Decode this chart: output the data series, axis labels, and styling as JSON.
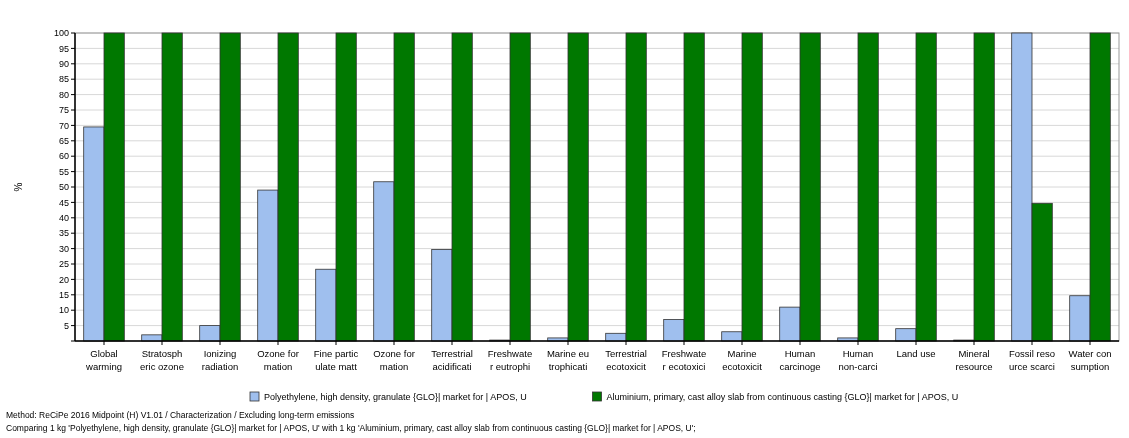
{
  "chart_data": {
    "type": "bar",
    "ylabel": "%",
    "categories": [
      "Global\nwarming",
      "Stratosph\neric ozone",
      "Ionizing\nradiation",
      "Ozone for\nmation",
      "Fine partic\nulate matt",
      "Ozone for\nmation",
      "Terrestrial\nacidificati",
      "Freshwate\nr eutrophi",
      "Marine eu\ntrophicati",
      "Terrestrial\necotoxicit",
      "Freshwate\nr ecotoxici",
      "Marine\necotoxicit",
      "Human\ncarcinoge",
      "Human\nnon-carci",
      "Land use",
      "Mineral\nresource",
      "Fossil reso\nurce scarci",
      "Water con\nsumption"
    ],
    "series": [
      {
        "name": "Polyethylene, high density, granulate {GLO}| market for | APOS, U",
        "color": "#9fbfee",
        "values": [
          69.5,
          2,
          5,
          49,
          23.3,
          51.7,
          29.7,
          0.3,
          1,
          2.5,
          7,
          3,
          11,
          1,
          4,
          0.3,
          100,
          14.7
        ]
      },
      {
        "name": "Aluminium, primary, cast alloy slab from continuous casting {GLO}| market for | APOS, U",
        "color": "#007800",
        "values": [
          100,
          100,
          100,
          100,
          100,
          100,
          100,
          100,
          100,
          100,
          100,
          100,
          100,
          100,
          100,
          100,
          44.7,
          100
        ]
      }
    ],
    "ylim": [
      0,
      100
    ],
    "yticks": [
      {
        "value": 0,
        "label": null
      },
      5,
      10,
      15,
      20,
      25,
      30,
      35,
      40,
      45,
      50,
      55,
      60,
      65,
      70,
      75,
      80,
      85,
      90,
      95,
      100
    ],
    "grid": "y",
    "legend": "bottom",
    "annotations": [
      "Method: ReCiPe 2016 Midpoint (H) V1.01 / Characterization / Excluding long-term emissions",
      "Comparing 1 kg 'Polyethylene, high density, granulate {GLO}| market for | APOS, U' with 1 kg 'Aluminium, primary, cast alloy slab from continuous casting {GLO}| market for | APOS, U';"
    ]
  }
}
